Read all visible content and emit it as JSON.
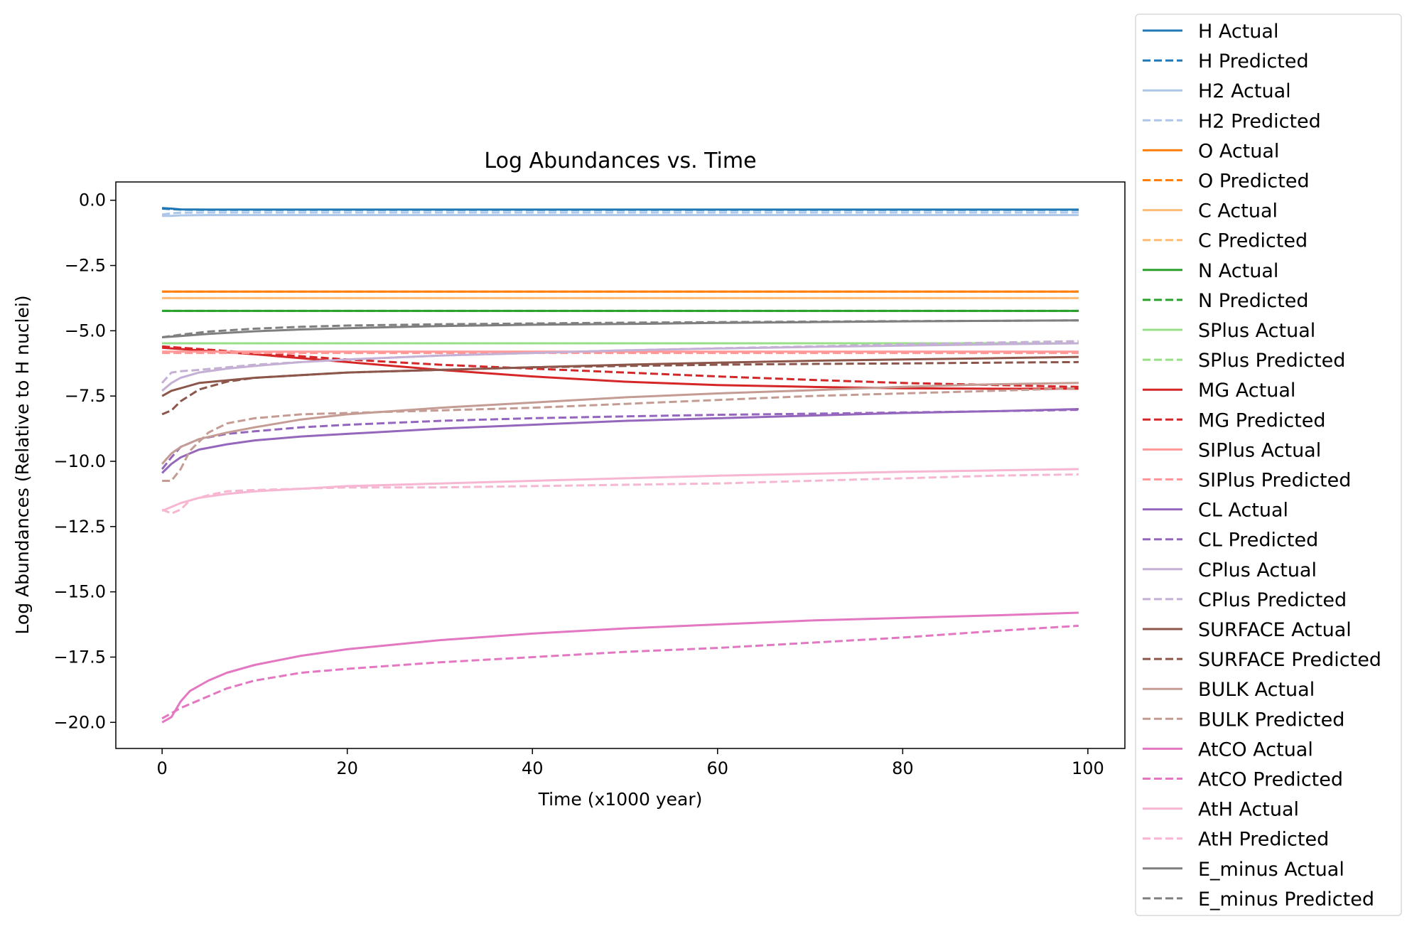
{
  "chart_data": {
    "type": "line",
    "title": "Log Abundances vs. Time",
    "xlabel": "Time (x1000 year)",
    "ylabel": "Log Abundances (Relative to H nuclei)",
    "xlim": [
      -5,
      104
    ],
    "ylim": [
      -21,
      0.7
    ],
    "xticks": [
      0,
      20,
      40,
      60,
      80,
      100
    ],
    "xtick_labels": [
      "0",
      "20",
      "40",
      "60",
      "80",
      "100"
    ],
    "yticks": [
      0,
      -2.5,
      -5,
      -7.5,
      -10,
      -12.5,
      -15,
      -17.5,
      -20
    ],
    "ytick_labels": [
      "0.0",
      "−2.5",
      "−5.0",
      "−7.5",
      "−10.0",
      "−12.5",
      "−15.0",
      "−17.5",
      "−20.0"
    ],
    "grid": false,
    "legend_position": "outside right",
    "series": [
      {
        "name": "H Actual",
        "color": "#1f77b4",
        "style": "solid",
        "x": [
          0,
          1,
          2,
          5,
          10,
          20,
          40,
          60,
          80,
          99
        ],
        "y": [
          -0.3,
          -0.32,
          -0.35,
          -0.36,
          -0.36,
          -0.36,
          -0.36,
          -0.36,
          -0.36,
          -0.36
        ]
      },
      {
        "name": "H Predicted",
        "color": "#1f77b4",
        "style": "dashed",
        "x": [
          0,
          1,
          2,
          5,
          10,
          20,
          40,
          60,
          80,
          99
        ],
        "y": [
          -0.32,
          -0.34,
          -0.36,
          -0.37,
          -0.37,
          -0.37,
          -0.37,
          -0.37,
          -0.37,
          -0.37
        ]
      },
      {
        "name": "H2 Actual",
        "color": "#aec7e8",
        "style": "solid",
        "x": [
          0,
          1,
          2,
          5,
          10,
          20,
          40,
          60,
          80,
          99
        ],
        "y": [
          -0.6,
          -0.6,
          -0.58,
          -0.57,
          -0.57,
          -0.57,
          -0.57,
          -0.57,
          -0.57,
          -0.57
        ]
      },
      {
        "name": "H2 Predicted",
        "color": "#aec7e8",
        "style": "dashed",
        "x": [
          0,
          1,
          2,
          5,
          10,
          20,
          40,
          60,
          80,
          99
        ],
        "y": [
          -0.55,
          -0.5,
          -0.48,
          -0.47,
          -0.47,
          -0.47,
          -0.47,
          -0.47,
          -0.47,
          -0.47
        ]
      },
      {
        "name": "O Actual",
        "color": "#ff7f0e",
        "style": "solid",
        "x": [
          0,
          99
        ],
        "y": [
          -3.5,
          -3.5
        ]
      },
      {
        "name": "O Predicted",
        "color": "#ff7f0e",
        "style": "dashed",
        "x": [
          0,
          99
        ],
        "y": [
          -3.5,
          -3.5
        ]
      },
      {
        "name": "C Actual",
        "color": "#ffbb78",
        "style": "solid",
        "x": [
          0,
          99
        ],
        "y": [
          -3.75,
          -3.75
        ]
      },
      {
        "name": "C Predicted",
        "color": "#ffbb78",
        "style": "dashed",
        "x": [
          0,
          99
        ],
        "y": [
          -3.75,
          -3.75
        ]
      },
      {
        "name": "N Actual",
        "color": "#2ca02c",
        "style": "solid",
        "x": [
          0,
          99
        ],
        "y": [
          -4.24,
          -4.24
        ]
      },
      {
        "name": "N Predicted",
        "color": "#2ca02c",
        "style": "dashed",
        "x": [
          0,
          99
        ],
        "y": [
          -4.24,
          -4.24
        ]
      },
      {
        "name": "SPlus Actual",
        "color": "#98df8a",
        "style": "solid",
        "x": [
          0,
          99
        ],
        "y": [
          -5.48,
          -5.48
        ]
      },
      {
        "name": "SPlus Predicted",
        "color": "#98df8a",
        "style": "dashed",
        "x": [
          0,
          99
        ],
        "y": [
          -5.48,
          -5.48
        ]
      },
      {
        "name": "MG Actual",
        "color": "#d62728",
        "style": "solid",
        "x": [
          0,
          10,
          20,
          30,
          40,
          50,
          60,
          70,
          80,
          90,
          99
        ],
        "y": [
          -5.65,
          -5.9,
          -6.2,
          -6.5,
          -6.75,
          -6.95,
          -7.08,
          -7.15,
          -7.2,
          -7.22,
          -7.22
        ]
      },
      {
        "name": "MG Predicted",
        "color": "#d62728",
        "style": "dashed",
        "x": [
          0,
          10,
          20,
          30,
          40,
          50,
          60,
          70,
          80,
          90,
          99
        ],
        "y": [
          -5.6,
          -5.85,
          -6.1,
          -6.3,
          -6.45,
          -6.6,
          -6.75,
          -6.88,
          -7.0,
          -7.08,
          -7.15
        ]
      },
      {
        "name": "SIPlus Actual",
        "color": "#ff9896",
        "style": "solid",
        "x": [
          0,
          99
        ],
        "y": [
          -5.8,
          -5.8
        ]
      },
      {
        "name": "SIPlus Predicted",
        "color": "#ff9896",
        "style": "dashed",
        "x": [
          0,
          99
        ],
        "y": [
          -5.85,
          -5.85
        ]
      },
      {
        "name": "CL Actual",
        "color": "#9467bd",
        "style": "solid",
        "x": [
          0,
          1,
          2,
          4,
          7,
          10,
          15,
          20,
          30,
          40,
          50,
          60,
          70,
          80,
          90,
          99
        ],
        "y": [
          -10.45,
          -10.1,
          -9.85,
          -9.55,
          -9.35,
          -9.2,
          -9.05,
          -8.95,
          -8.75,
          -8.6,
          -8.45,
          -8.35,
          -8.25,
          -8.15,
          -8.08,
          -8.0
        ]
      },
      {
        "name": "CL Predicted",
        "color": "#9467bd",
        "style": "dashed",
        "x": [
          0,
          1,
          2,
          4,
          7,
          10,
          15,
          20,
          30,
          40,
          50,
          60,
          70,
          80,
          90,
          99
        ],
        "y": [
          -10.3,
          -9.85,
          -9.45,
          -9.15,
          -8.95,
          -8.85,
          -8.7,
          -8.6,
          -8.45,
          -8.35,
          -8.28,
          -8.22,
          -8.18,
          -8.13,
          -8.08,
          -8.03
        ]
      },
      {
        "name": "CPlus Actual",
        "color": "#c5b0d5",
        "style": "solid",
        "x": [
          0,
          1,
          2,
          4,
          7,
          10,
          15,
          20,
          30,
          40,
          50,
          60,
          70,
          80,
          90,
          99
        ],
        "y": [
          -7.3,
          -7.0,
          -6.8,
          -6.6,
          -6.45,
          -6.35,
          -6.2,
          -6.1,
          -5.95,
          -5.85,
          -5.75,
          -5.68,
          -5.62,
          -5.57,
          -5.52,
          -5.48
        ]
      },
      {
        "name": "CPlus Predicted",
        "color": "#c5b0d5",
        "style": "dashed",
        "x": [
          0,
          1,
          2,
          4,
          7,
          10,
          15,
          20,
          30,
          40,
          50,
          60,
          70,
          80,
          90,
          99
        ],
        "y": [
          -7.0,
          -6.6,
          -6.55,
          -6.5,
          -6.4,
          -6.3,
          -6.2,
          -6.1,
          -5.95,
          -5.85,
          -5.75,
          -5.67,
          -5.6,
          -5.52,
          -5.45,
          -5.4
        ]
      },
      {
        "name": "SURFACE Actual",
        "color": "#8c564b",
        "style": "solid",
        "x": [
          0,
          1,
          2,
          4,
          7,
          10,
          15,
          20,
          30,
          40,
          50,
          60,
          70,
          80,
          90,
          99
        ],
        "y": [
          -7.5,
          -7.3,
          -7.2,
          -7.0,
          -6.9,
          -6.8,
          -6.7,
          -6.6,
          -6.5,
          -6.4,
          -6.3,
          -6.22,
          -6.15,
          -6.1,
          -6.05,
          -6.0
        ]
      },
      {
        "name": "SURFACE Predicted",
        "color": "#8c564b",
        "style": "dashed",
        "x": [
          0,
          1,
          2,
          4,
          7,
          10,
          15,
          20,
          30,
          40,
          50,
          60,
          70,
          80,
          90,
          99
        ],
        "y": [
          -8.2,
          -8.05,
          -7.7,
          -7.25,
          -6.95,
          -6.8,
          -6.7,
          -6.6,
          -6.5,
          -6.4,
          -6.35,
          -6.3,
          -6.27,
          -6.25,
          -6.22,
          -6.2
        ]
      },
      {
        "name": "BULK Actual",
        "color": "#c49c94",
        "style": "solid",
        "x": [
          0,
          1,
          2,
          4,
          7,
          10,
          15,
          20,
          30,
          40,
          50,
          60,
          70,
          80,
          90,
          99
        ],
        "y": [
          -10.1,
          -9.7,
          -9.45,
          -9.15,
          -8.9,
          -8.7,
          -8.4,
          -8.2,
          -7.95,
          -7.75,
          -7.55,
          -7.4,
          -7.28,
          -7.15,
          -7.05,
          -7.0
        ]
      },
      {
        "name": "BULK Predicted",
        "color": "#c49c94",
        "style": "dashed",
        "x": [
          0,
          1,
          2,
          3,
          5,
          7,
          10,
          15,
          20,
          30,
          40,
          50,
          60,
          70,
          80,
          90,
          99
        ],
        "y": [
          -10.75,
          -10.75,
          -10.3,
          -9.6,
          -8.9,
          -8.55,
          -8.35,
          -8.2,
          -8.15,
          -8.05,
          -7.95,
          -7.8,
          -7.65,
          -7.5,
          -7.4,
          -7.3,
          -7.2
        ]
      },
      {
        "name": "AtCO Actual",
        "color": "#e377c2",
        "style": "solid",
        "x": [
          0,
          1,
          2,
          3,
          5,
          7,
          10,
          15,
          20,
          30,
          40,
          50,
          60,
          70,
          80,
          90,
          99
        ],
        "y": [
          -20.0,
          -19.8,
          -19.2,
          -18.8,
          -18.4,
          -18.1,
          -17.8,
          -17.45,
          -17.2,
          -16.85,
          -16.6,
          -16.4,
          -16.25,
          -16.1,
          -16.0,
          -15.9,
          -15.8
        ]
      },
      {
        "name": "AtCO Predicted",
        "color": "#e377c2",
        "style": "dashed",
        "x": [
          0,
          1,
          2,
          3,
          5,
          7,
          10,
          15,
          20,
          30,
          40,
          50,
          60,
          70,
          80,
          90,
          99
        ],
        "y": [
          -19.85,
          -19.65,
          -19.45,
          -19.3,
          -19.0,
          -18.7,
          -18.4,
          -18.1,
          -17.95,
          -17.7,
          -17.5,
          -17.3,
          -17.15,
          -16.95,
          -16.75,
          -16.5,
          -16.3
        ]
      },
      {
        "name": "AtH Actual",
        "color": "#f7b6d2",
        "style": "solid",
        "x": [
          0,
          1,
          2,
          4,
          7,
          10,
          15,
          20,
          30,
          40,
          50,
          60,
          70,
          80,
          90,
          99
        ],
        "y": [
          -11.9,
          -11.75,
          -11.6,
          -11.4,
          -11.25,
          -11.15,
          -11.05,
          -10.95,
          -10.85,
          -10.75,
          -10.65,
          -10.55,
          -10.48,
          -10.4,
          -10.35,
          -10.3
        ]
      },
      {
        "name": "AtH Predicted",
        "color": "#f7b6d2",
        "style": "dashed",
        "x": [
          0,
          1,
          2,
          3,
          5,
          7,
          10,
          15,
          20,
          30,
          40,
          50,
          60,
          70,
          80,
          90,
          99
        ],
        "y": [
          -11.85,
          -12.0,
          -11.85,
          -11.5,
          -11.3,
          -11.15,
          -11.1,
          -11.05,
          -11.0,
          -11.0,
          -10.95,
          -10.9,
          -10.85,
          -10.75,
          -10.65,
          -10.55,
          -10.5
        ]
      },
      {
        "name": "E_minus Actual",
        "color": "#7f7f7f",
        "style": "solid",
        "x": [
          0,
          2,
          5,
          10,
          15,
          20,
          30,
          40,
          50,
          60,
          70,
          80,
          90,
          99
        ],
        "y": [
          -5.25,
          -5.2,
          -5.12,
          -5.02,
          -4.95,
          -4.9,
          -4.82,
          -4.77,
          -4.74,
          -4.7,
          -4.67,
          -4.64,
          -4.62,
          -4.6
        ]
      },
      {
        "name": "E_minus Predicted",
        "color": "#7f7f7f",
        "style": "dashed",
        "x": [
          0,
          2,
          5,
          10,
          15,
          20,
          30,
          40,
          50,
          60,
          70,
          80,
          90,
          99
        ],
        "y": [
          -5.25,
          -5.15,
          -5.03,
          -4.92,
          -4.85,
          -4.8,
          -4.75,
          -4.72,
          -4.69,
          -4.67,
          -4.65,
          -4.63,
          -4.62,
          -4.6
        ]
      }
    ]
  }
}
